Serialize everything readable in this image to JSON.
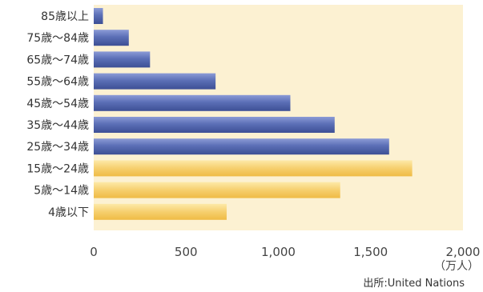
{
  "chart_data": {
    "type": "bar",
    "orientation": "horizontal",
    "categories": [
      "85歳以上",
      "75歳〜84歳",
      "65歳〜74歳",
      "55歳〜64歳",
      "45歳〜54歳",
      "35歳〜44歳",
      "25歳〜34歳",
      "15歳〜24歳",
      "5歳〜14歳",
      "4歳以下"
    ],
    "values": [
      50,
      190,
      305,
      660,
      1065,
      1305,
      1600,
      1725,
      1335,
      720
    ],
    "xlim": [
      0,
      2000
    ],
    "xticks": [
      0,
      500,
      1000,
      1500,
      2000
    ],
    "xtick_labels": [
      "0",
      "500",
      "1,000",
      "1,500",
      "2,000"
    ],
    "unit": "（万人）",
    "source": "出所:United Nations",
    "grid": false,
    "colors": {
      "plot_background": "#fcf1d2",
      "older_bars": "#5b6fb6",
      "younger_bars": "#f6cf6e"
    },
    "bar_color_groups": [
      "older",
      "older",
      "older",
      "older",
      "older",
      "older",
      "older",
      "younger",
      "younger",
      "younger"
    ]
  }
}
